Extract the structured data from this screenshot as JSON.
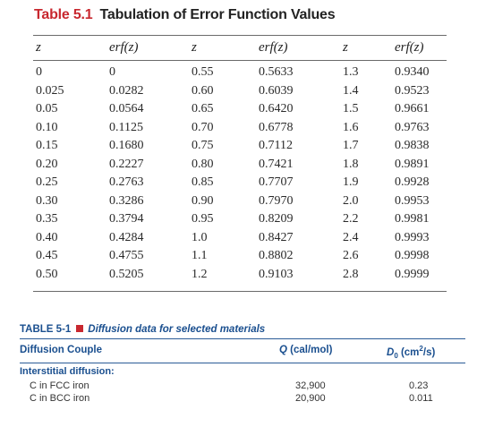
{
  "table_5_1": {
    "number": "Table 5.1",
    "title": "Tabulation of Error Function Values",
    "headers": [
      "z",
      "erf(z)",
      "z",
      "erf(z)",
      "z",
      "erf(z)"
    ],
    "rows": [
      [
        "0",
        "0",
        "0.55",
        "0.5633",
        "1.3",
        "0.9340"
      ],
      [
        "0.025",
        "0.0282",
        "0.60",
        "0.6039",
        "1.4",
        "0.9523"
      ],
      [
        "0.05",
        "0.0564",
        "0.65",
        "0.6420",
        "1.5",
        "0.9661"
      ],
      [
        "0.10",
        "0.1125",
        "0.70",
        "0.6778",
        "1.6",
        "0.9763"
      ],
      [
        "0.15",
        "0.1680",
        "0.75",
        "0.7112",
        "1.7",
        "0.9838"
      ],
      [
        "0.20",
        "0.2227",
        "0.80",
        "0.7421",
        "1.8",
        "0.9891"
      ],
      [
        "0.25",
        "0.2763",
        "0.85",
        "0.7707",
        "1.9",
        "0.9928"
      ],
      [
        "0.30",
        "0.3286",
        "0.90",
        "0.7970",
        "2.0",
        "0.9953"
      ],
      [
        "0.35",
        "0.3794",
        "0.95",
        "0.8209",
        "2.2",
        "0.9981"
      ],
      [
        "0.40",
        "0.4284",
        "1.0",
        "0.8427",
        "2.4",
        "0.9993"
      ],
      [
        "0.45",
        "0.4755",
        "1.1",
        "0.8802",
        "2.6",
        "0.9998"
      ],
      [
        "0.50",
        "0.5205",
        "1.2",
        "0.9103",
        "2.8",
        "0.9999"
      ]
    ],
    "accent_color": "#c8282f"
  },
  "table_5_1_diffusion": {
    "label": "TABLE 5-1",
    "caption": "Diffusion data for selected materials",
    "headers": {
      "couple": "Diffusion Couple",
      "q_symbol": "Q",
      "q_units": " (cal/mol)",
      "d_symbol": "D",
      "d_sub": "0",
      "d_units_pre": " (cm",
      "d_units_sup": "2",
      "d_units_post": "/s)"
    },
    "section": "Interstitial diffusion:",
    "rows": [
      {
        "couple": "C in FCC iron",
        "q": "32,900",
        "d0": "0.23"
      },
      {
        "couple": "C in BCC iron",
        "q": "20,900",
        "d0": "0.011"
      }
    ],
    "accent_color": "#1a4f8f"
  }
}
